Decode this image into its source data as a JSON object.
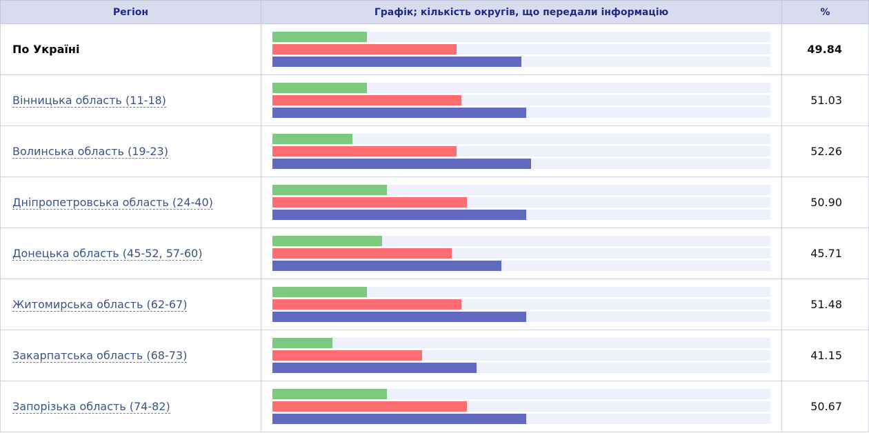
{
  "colors": {
    "header_bg": "#d8dcee",
    "header_text": "#1e2a8a",
    "bar_green": "#7cc97f",
    "bar_red": "#fe6d72",
    "bar_blue": "#626abf",
    "track": "#eef0fb"
  },
  "table": {
    "headers": {
      "region": "Регіон",
      "chart": "Графік; кількість округів, що передали інформацію",
      "percent": "%"
    },
    "rows": [
      {
        "region": "По Україні",
        "percent": "49.84",
        "is_total": true,
        "bars": [
          19.0,
          37.0,
          50.0
        ]
      },
      {
        "region": "Вінницька область (11-18)",
        "percent": "51.03",
        "is_total": false,
        "bars": [
          19.0,
          38.0,
          51.0
        ]
      },
      {
        "region": "Волинська область (19-23)",
        "percent": "52.26",
        "is_total": false,
        "bars": [
          16.0,
          37.0,
          52.0
        ]
      },
      {
        "region": "Дніпропетровська область (24-40)",
        "percent": "50.90",
        "is_total": false,
        "bars": [
          23.0,
          39.0,
          51.0
        ]
      },
      {
        "region": "Донецька область (45-52, 57-60)",
        "percent": "45.71",
        "is_total": false,
        "bars": [
          22.0,
          36.0,
          46.0
        ]
      },
      {
        "region": "Житомирська область (62-67)",
        "percent": "51.48",
        "is_total": false,
        "bars": [
          19.0,
          38.0,
          51.0
        ]
      },
      {
        "region": "Закарпатська область (68-73)",
        "percent": "41.15",
        "is_total": false,
        "bars": [
          12.0,
          30.0,
          41.0
        ]
      },
      {
        "region": "Запорізька область (74-82)",
        "percent": "50.67",
        "is_total": false,
        "bars": [
          23.0,
          39.0,
          51.0
        ]
      }
    ]
  }
}
